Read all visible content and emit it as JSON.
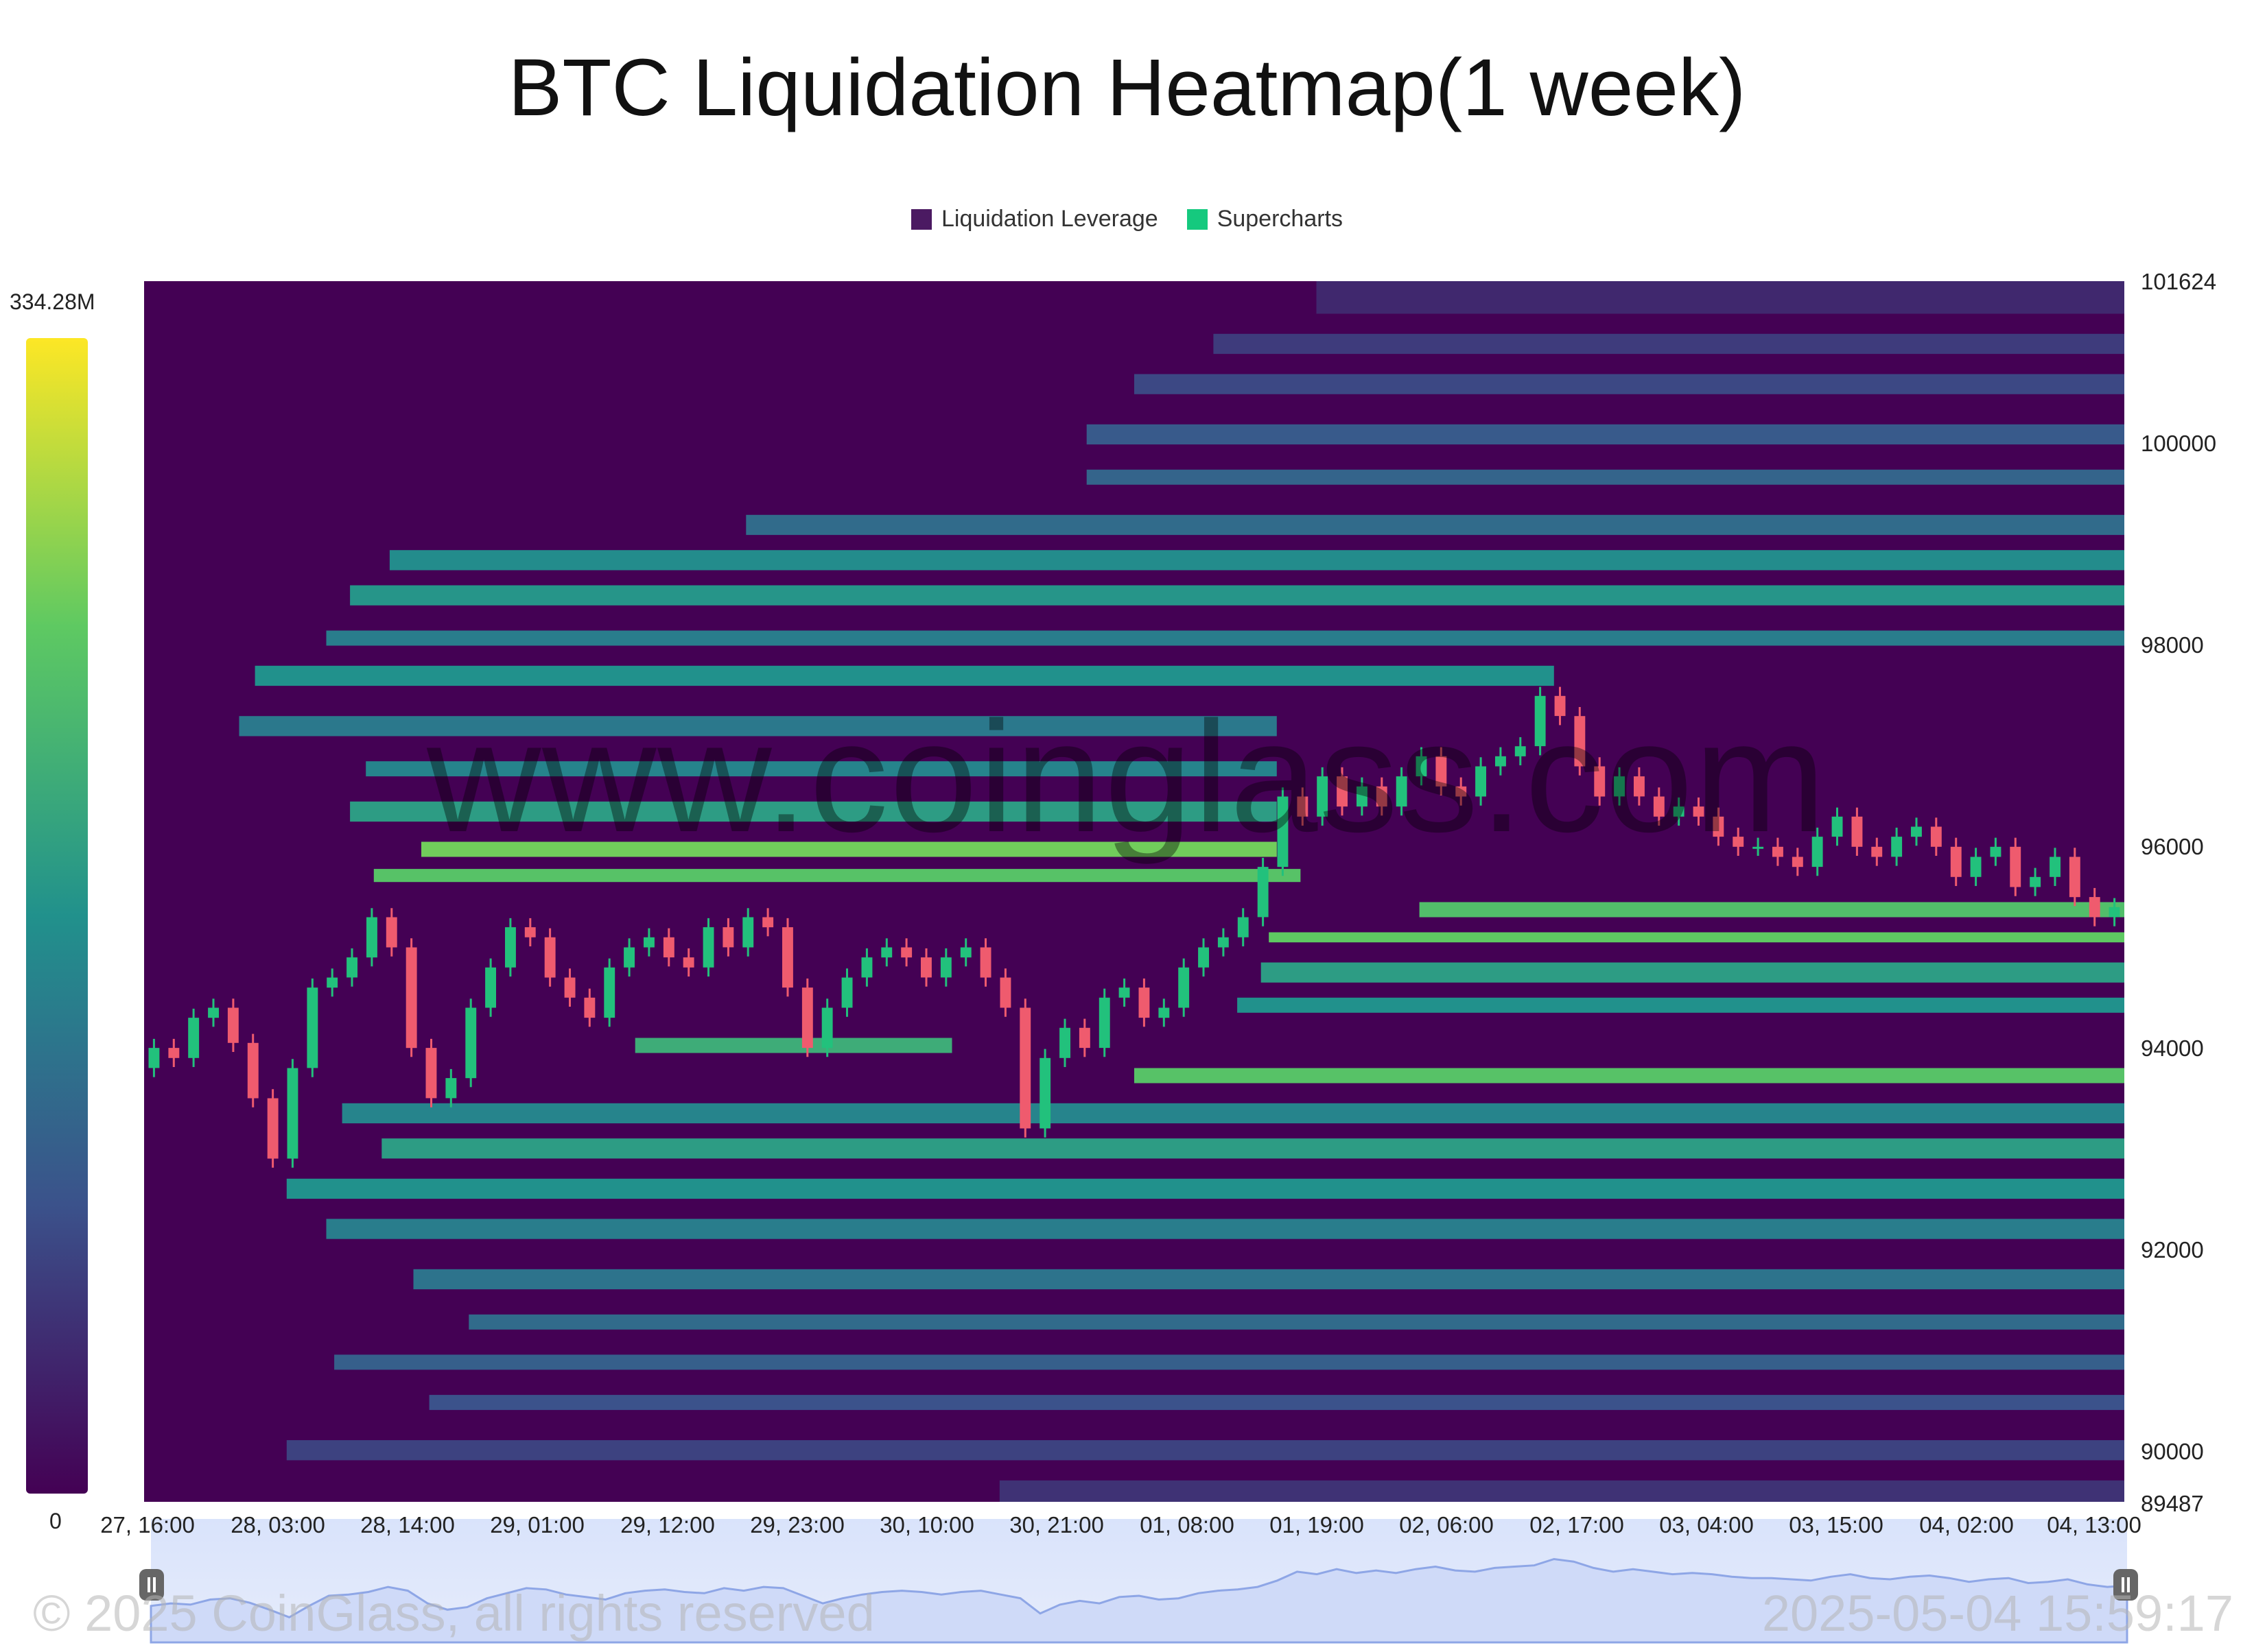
{
  "title": "BTC Liquidation Heatmap(1 week)",
  "legend": [
    {
      "label": "Liquidation Leverage",
      "color": "#4b1a62"
    },
    {
      "label": "Supercharts",
      "color": "#15c97e"
    }
  ],
  "watermark": "www.coinglass.com",
  "copyright": "© 2025 CoinGlass, all rights reserved",
  "timestamp": "2025-05-04 15:59:17",
  "colorbar": {
    "max_label": "334.28M",
    "min_label": "0"
  },
  "chart_data": {
    "type": "heatmap",
    "title": "BTC Liquidation Heatmap(1 week)",
    "x_tick_labels": [
      "27, 16:00",
      "28, 03:00",
      "28, 14:00",
      "29, 01:00",
      "29, 12:00",
      "29, 23:00",
      "30, 10:00",
      "30, 21:00",
      "01, 08:00",
      "01, 19:00",
      "02, 06:00",
      "02, 17:00",
      "03, 04:00",
      "03, 15:00",
      "04, 02:00",
      "04, 13:00"
    ],
    "y_tick_labels": [
      "101624",
      "100000",
      "98000",
      "96000",
      "94000",
      "92000",
      "90000",
      "89487"
    ],
    "ylim": [
      89487,
      101624
    ],
    "colorscale": [
      "#440154",
      "#3b528b",
      "#21918c",
      "#5ec962",
      "#fde725"
    ],
    "value_range": [
      0,
      334280000
    ],
    "price_series": [
      {
        "t": 0,
        "p": 93800
      },
      {
        "t": 0.25,
        "p": 94000
      },
      {
        "t": 0.5,
        "p": 93900
      },
      {
        "t": 0.75,
        "p": 94300
      },
      {
        "t": 1,
        "p": 94400
      },
      {
        "t": 1.25,
        "p": 94050
      },
      {
        "t": 1.5,
        "p": 93500
      },
      {
        "t": 1.75,
        "p": 92900
      },
      {
        "t": 2,
        "p": 93800
      },
      {
        "t": 2.25,
        "p": 94600
      },
      {
        "t": 2.5,
        "p": 94700
      },
      {
        "t": 2.75,
        "p": 94900
      },
      {
        "t": 3,
        "p": 95300
      },
      {
        "t": 3.25,
        "p": 95000
      },
      {
        "t": 3.5,
        "p": 94000
      },
      {
        "t": 3.75,
        "p": 93500
      },
      {
        "t": 4,
        "p": 93700
      },
      {
        "t": 4.25,
        "p": 94400
      },
      {
        "t": 4.5,
        "p": 94800
      },
      {
        "t": 4.75,
        "p": 95200
      },
      {
        "t": 5,
        "p": 95100
      },
      {
        "t": 5.25,
        "p": 94700
      },
      {
        "t": 5.5,
        "p": 94500
      },
      {
        "t": 5.75,
        "p": 94300
      },
      {
        "t": 6,
        "p": 94800
      },
      {
        "t": 6.25,
        "p": 95000
      },
      {
        "t": 6.5,
        "p": 95100
      },
      {
        "t": 6.75,
        "p": 94900
      },
      {
        "t": 7,
        "p": 94800
      },
      {
        "t": 7.25,
        "p": 95200
      },
      {
        "t": 7.5,
        "p": 95000
      },
      {
        "t": 7.75,
        "p": 95300
      },
      {
        "t": 8,
        "p": 95200
      },
      {
        "t": 8.25,
        "p": 94600
      },
      {
        "t": 8.5,
        "p": 94000
      },
      {
        "t": 8.75,
        "p": 94400
      },
      {
        "t": 9,
        "p": 94700
      },
      {
        "t": 9.25,
        "p": 94900
      },
      {
        "t": 9.5,
        "p": 95000
      },
      {
        "t": 9.75,
        "p": 94900
      },
      {
        "t": 10,
        "p": 94700
      },
      {
        "t": 10.25,
        "p": 94900
      },
      {
        "t": 10.5,
        "p": 95000
      },
      {
        "t": 10.75,
        "p": 94700
      },
      {
        "t": 11,
        "p": 94400
      },
      {
        "t": 11.25,
        "p": 93200
      },
      {
        "t": 11.5,
        "p": 93900
      },
      {
        "t": 11.75,
        "p": 94200
      },
      {
        "t": 12,
        "p": 94000
      },
      {
        "t": 12.25,
        "p": 94500
      },
      {
        "t": 12.5,
        "p": 94600
      },
      {
        "t": 12.75,
        "p": 94300
      },
      {
        "t": 13,
        "p": 94400
      },
      {
        "t": 13.25,
        "p": 94800
      },
      {
        "t": 13.5,
        "p": 95000
      },
      {
        "t": 13.75,
        "p": 95100
      },
      {
        "t": 14,
        "p": 95300
      },
      {
        "t": 14.25,
        "p": 95800
      },
      {
        "t": 14.5,
        "p": 96500
      },
      {
        "t": 14.75,
        "p": 96300
      },
      {
        "t": 15,
        "p": 96700
      },
      {
        "t": 15.25,
        "p": 96400
      },
      {
        "t": 15.5,
        "p": 96600
      },
      {
        "t": 15.75,
        "p": 96400
      },
      {
        "t": 16,
        "p": 96700
      },
      {
        "t": 16.25,
        "p": 96900
      },
      {
        "t": 16.5,
        "p": 96600
      },
      {
        "t": 16.75,
        "p": 96500
      },
      {
        "t": 17,
        "p": 96800
      },
      {
        "t": 17.25,
        "p": 96900
      },
      {
        "t": 17.5,
        "p": 97000
      },
      {
        "t": 17.75,
        "p": 97500
      },
      {
        "t": 18,
        "p": 97300
      },
      {
        "t": 18.25,
        "p": 96800
      },
      {
        "t": 18.5,
        "p": 96500
      },
      {
        "t": 18.75,
        "p": 96700
      },
      {
        "t": 19,
        "p": 96500
      },
      {
        "t": 19.25,
        "p": 96300
      },
      {
        "t": 19.5,
        "p": 96400
      },
      {
        "t": 19.75,
        "p": 96300
      },
      {
        "t": 20,
        "p": 96100
      },
      {
        "t": 20.25,
        "p": 96000
      },
      {
        "t": 20.5,
        "p": 96000
      },
      {
        "t": 20.75,
        "p": 95900
      },
      {
        "t": 21,
        "p": 95800
      },
      {
        "t": 21.25,
        "p": 96100
      },
      {
        "t": 21.5,
        "p": 96300
      },
      {
        "t": 21.75,
        "p": 96000
      },
      {
        "t": 22,
        "p": 95900
      },
      {
        "t": 22.25,
        "p": 96100
      },
      {
        "t": 22.5,
        "p": 96200
      },
      {
        "t": 22.75,
        "p": 96000
      },
      {
        "t": 23,
        "p": 95700
      },
      {
        "t": 23.25,
        "p": 95900
      },
      {
        "t": 23.5,
        "p": 96000
      },
      {
        "t": 23.75,
        "p": 95600
      },
      {
        "t": 24,
        "p": 95700
      },
      {
        "t": 24.25,
        "p": 95900
      },
      {
        "t": 24.5,
        "p": 95500
      },
      {
        "t": 24.75,
        "p": 95300
      },
      {
        "t": 25,
        "p": 95400
      }
    ],
    "bands": [
      {
        "y0": 101300,
        "y1": 101624,
        "x0": 14.8,
        "x1": 25,
        "v": 0.12
      },
      {
        "y0": 100900,
        "y1": 101100,
        "x0": 13.5,
        "x1": 25,
        "v": 0.18
      },
      {
        "y0": 100500,
        "y1": 100700,
        "x0": 12.5,
        "x1": 25,
        "v": 0.22
      },
      {
        "y0": 100000,
        "y1": 100200,
        "x0": 11.9,
        "x1": 25,
        "v": 0.28
      },
      {
        "y0": 99600,
        "y1": 99750,
        "x0": 11.9,
        "x1": 25,
        "v": 0.32
      },
      {
        "y0": 99100,
        "y1": 99300,
        "x0": 7.6,
        "x1": 25,
        "v": 0.35
      },
      {
        "y0": 98750,
        "y1": 98950,
        "x0": 3.1,
        "x1": 25,
        "v": 0.48
      },
      {
        "y0": 98400,
        "y1": 98600,
        "x0": 2.6,
        "x1": 25,
        "v": 0.52
      },
      {
        "y0": 98000,
        "y1": 98150,
        "x0": 2.3,
        "x1": 25,
        "v": 0.42
      },
      {
        "y0": 97600,
        "y1": 97800,
        "x0": 1.4,
        "x1": 17.8,
        "v": 0.5
      },
      {
        "y0": 97100,
        "y1": 97300,
        "x0": 1.2,
        "x1": 14.3,
        "v": 0.4
      },
      {
        "y0": 96700,
        "y1": 96850,
        "x0": 2.8,
        "x1": 14.3,
        "v": 0.45
      },
      {
        "y0": 96250,
        "y1": 96450,
        "x0": 2.6,
        "x1": 14.3,
        "v": 0.55
      },
      {
        "y0": 95900,
        "y1": 96050,
        "x0": 3.5,
        "x1": 14.3,
        "v": 0.78
      },
      {
        "y0": 95650,
        "y1": 95780,
        "x0": 2.9,
        "x1": 14.6,
        "v": 0.72
      },
      {
        "y0": 95300,
        "y1": 95450,
        "x0": 16.1,
        "x1": 25,
        "v": 0.7
      },
      {
        "y0": 95050,
        "y1": 95150,
        "x0": 14.2,
        "x1": 25,
        "v": 0.75
      },
      {
        "y0": 94650,
        "y1": 94850,
        "x0": 14.1,
        "x1": 25,
        "v": 0.55
      },
      {
        "y0": 94350,
        "y1": 94500,
        "x0": 13.8,
        "x1": 25,
        "v": 0.5
      },
      {
        "y0": 93950,
        "y1": 94100,
        "x0": 6.2,
        "x1": 10.2,
        "v": 0.62
      },
      {
        "y0": 93650,
        "y1": 93800,
        "x0": 12.5,
        "x1": 25,
        "v": 0.72
      },
      {
        "y0": 93250,
        "y1": 93450,
        "x0": 2.5,
        "x1": 25,
        "v": 0.45
      },
      {
        "y0": 92900,
        "y1": 93100,
        "x0": 3.0,
        "x1": 25,
        "v": 0.55
      },
      {
        "y0": 92500,
        "y1": 92700,
        "x0": 1.8,
        "x1": 25,
        "v": 0.5
      },
      {
        "y0": 92100,
        "y1": 92300,
        "x0": 2.3,
        "x1": 25,
        "v": 0.42
      },
      {
        "y0": 91600,
        "y1": 91800,
        "x0": 3.4,
        "x1": 25,
        "v": 0.38
      },
      {
        "y0": 91200,
        "y1": 91350,
        "x0": 4.1,
        "x1": 25,
        "v": 0.35
      },
      {
        "y0": 90800,
        "y1": 90950,
        "x0": 2.4,
        "x1": 25,
        "v": 0.3
      },
      {
        "y0": 90400,
        "y1": 90550,
        "x0": 3.6,
        "x1": 25,
        "v": 0.25
      },
      {
        "y0": 89900,
        "y1": 90100,
        "x0": 1.8,
        "x1": 25,
        "v": 0.2
      },
      {
        "y0": 89487,
        "y1": 89700,
        "x0": 10.8,
        "x1": 25,
        "v": 0.15
      }
    ]
  }
}
